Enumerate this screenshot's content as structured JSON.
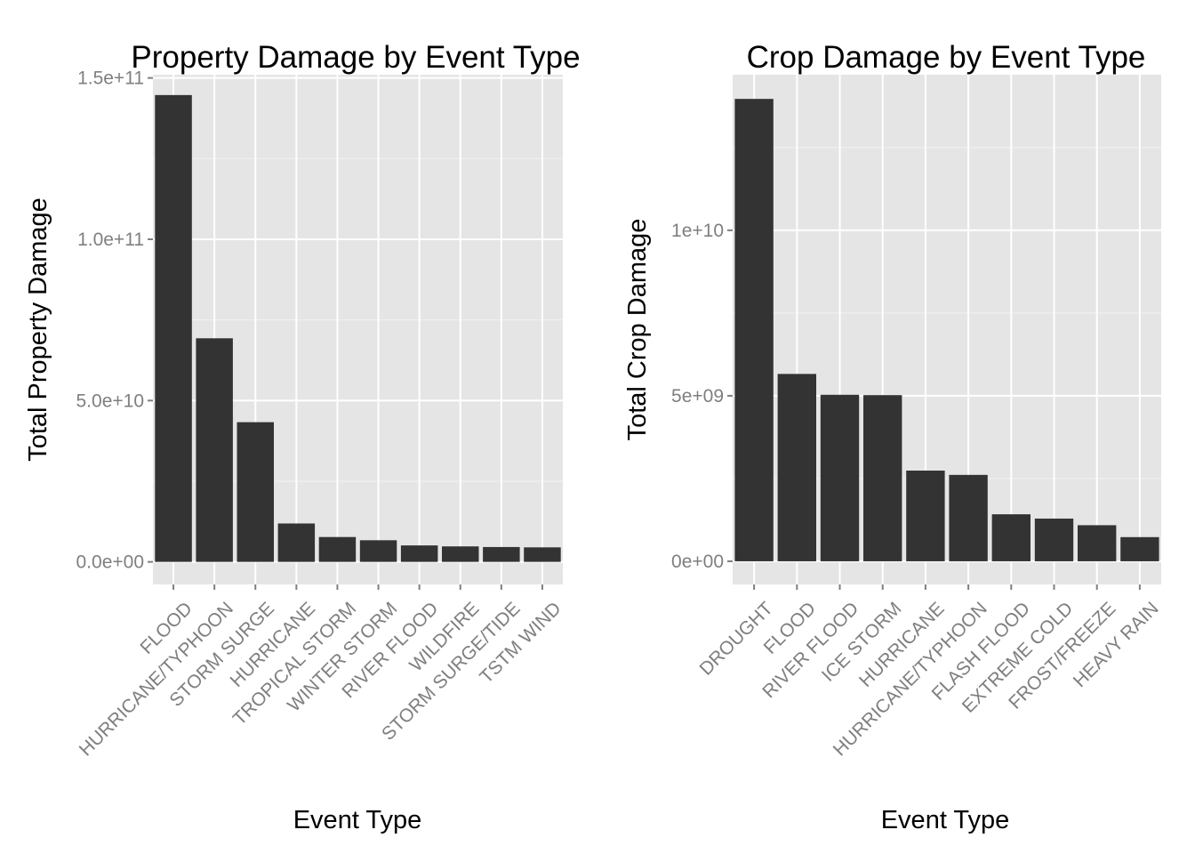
{
  "chart_data": [
    {
      "type": "bar",
      "title": "Property Damage by Event Type",
      "xlabel": "Event Type",
      "ylabel": "Total Property Damage",
      "categories": [
        "FLOOD",
        "HURRICANE/TYPHOON",
        "STORM SURGE",
        "HURRICANE",
        "TROPICAL STORM",
        "WINTER STORM",
        "RIVER FLOOD",
        "WILDFIRE",
        "STORM SURGE/TIDE",
        "TSTM WIND"
      ],
      "values": [
        144700000000,
        69300000000,
        43300000000,
        11900000000,
        7700000000,
        6700000000,
        5100000000,
        4800000000,
        4600000000,
        4500000000
      ],
      "ylim": [
        -7000000000,
        151000000000
      ],
      "yticks": [
        0,
        50000000000,
        100000000000,
        150000000000
      ],
      "ytick_labels": [
        "0.0e+00",
        "5.0e+10",
        "1.0e+11",
        "1.5e+11"
      ],
      "grid": true,
      "legend": "none"
    },
    {
      "type": "bar",
      "title": "Crop Damage by Event Type",
      "xlabel": "Event Type",
      "ylabel": "Total Crop Damage",
      "categories": [
        "DROUGHT",
        "FLOOD",
        "RIVER FLOOD",
        "ICE STORM",
        "HURRICANE",
        "HURRICANE/TYPHOON",
        "FLASH FLOOD",
        "EXTREME COLD",
        "FROST/FREEZE",
        "HEAVY RAIN"
      ],
      "values": [
        13970000000,
        5660000000,
        5030000000,
        5020000000,
        2740000000,
        2610000000,
        1420000000,
        1290000000,
        1090000000,
        730000000
      ],
      "ylim": [
        -700000000,
        14700000000
      ],
      "yticks": [
        0,
        5000000000,
        10000000000
      ],
      "ytick_labels": [
        "0e+00",
        "5e+09",
        "1e+10"
      ],
      "grid": true,
      "legend": "none"
    }
  ]
}
